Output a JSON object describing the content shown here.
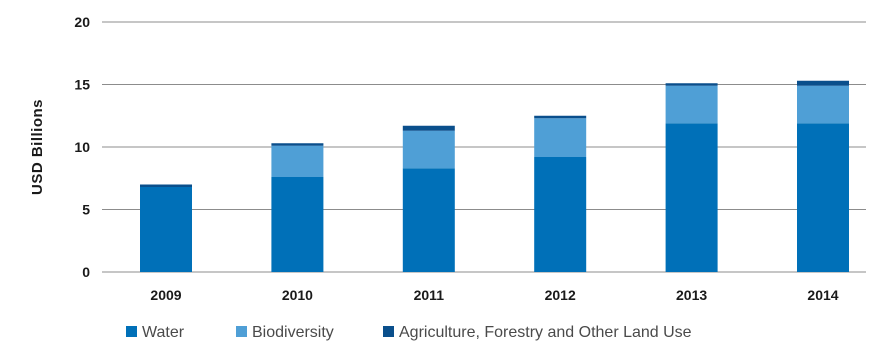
{
  "chart_data": {
    "type": "bar",
    "stacked": true,
    "categories": [
      "2009",
      "2010",
      "2011",
      "2012",
      "2013",
      "2014"
    ],
    "series": [
      {
        "name": "Water",
        "color": "#0070b8",
        "values": [
          6.8,
          7.6,
          8.3,
          9.2,
          11.9,
          11.9
        ]
      },
      {
        "name": "Biodiversity",
        "color": "#4f9fd6",
        "values": [
          0.0,
          2.5,
          3.0,
          3.1,
          3.0,
          3.0
        ]
      },
      {
        "name": "Agriculture, Forestry and Other Land Use",
        "color": "#0a4f8c",
        "values": [
          0.2,
          0.2,
          0.4,
          0.2,
          0.2,
          0.4
        ]
      }
    ],
    "ylabel": "USD  Billions",
    "ylim": [
      0,
      20
    ],
    "yticks": [
      0,
      5,
      10,
      15,
      20
    ],
    "grid": true,
    "legend_position": "bottom"
  }
}
